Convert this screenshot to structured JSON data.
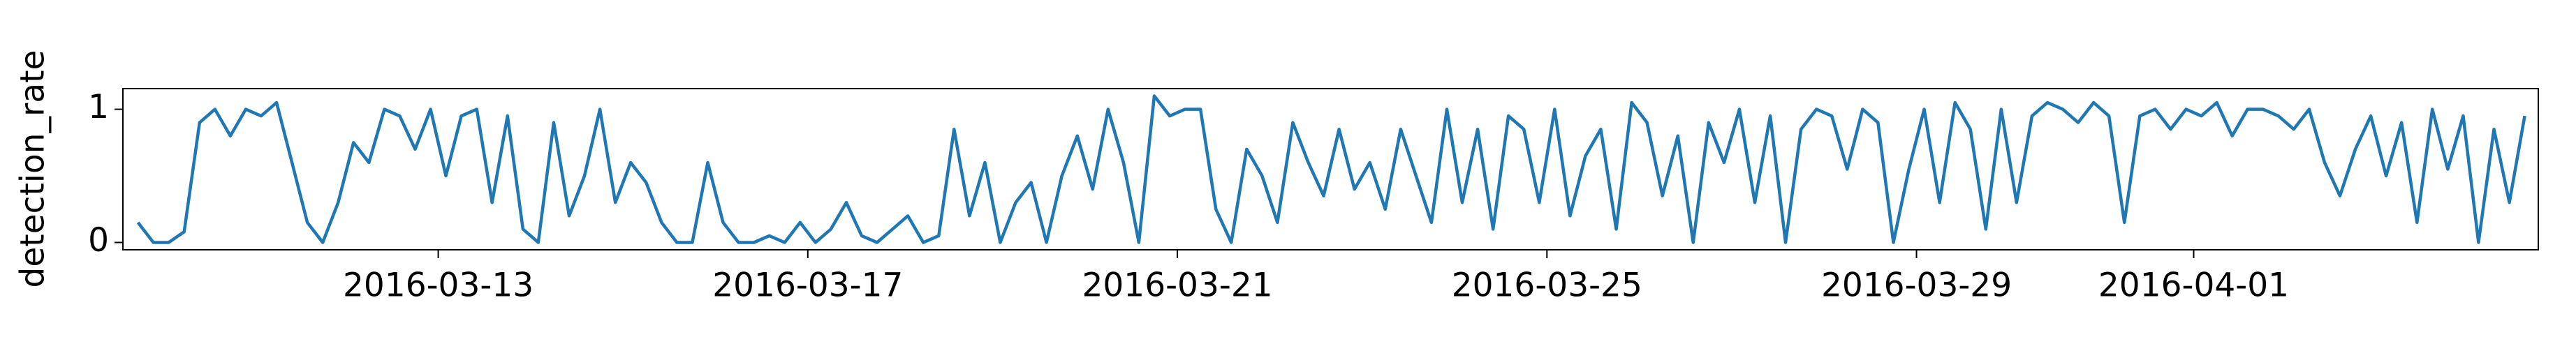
{
  "chart_data": {
    "type": "line",
    "ylabel": "detection_rate",
    "x": [
      9.75,
      9.917,
      10.083,
      10.25,
      10.417,
      10.583,
      10.75,
      10.917,
      11.083,
      11.25,
      11.417,
      11.583,
      11.75,
      11.917,
      12.083,
      12.25,
      12.417,
      12.583,
      12.75,
      12.917,
      13.083,
      13.25,
      13.417,
      13.583,
      13.75,
      13.917,
      14.083,
      14.25,
      14.417,
      14.583,
      14.75,
      14.917,
      15.083,
      15.25,
      15.417,
      15.583,
      15.75,
      15.917,
      16.083,
      16.25,
      16.417,
      16.583,
      16.75,
      16.917,
      17.083,
      17.25,
      17.417,
      17.583,
      17.75,
      17.917,
      18.083,
      18.25,
      18.417,
      18.583,
      18.75,
      18.917,
      19.083,
      19.25,
      19.417,
      19.583,
      19.75,
      19.917,
      20.083,
      20.25,
      20.417,
      20.583,
      20.75,
      20.917,
      21.083,
      21.25,
      21.417,
      21.583,
      21.75,
      21.917,
      22.083,
      22.25,
      22.417,
      22.583,
      22.75,
      22.917,
      23.083,
      23.25,
      23.417,
      23.583,
      23.75,
      23.917,
      24.083,
      24.25,
      24.417,
      24.583,
      24.75,
      24.917,
      25.083,
      25.25,
      25.417,
      25.583,
      25.75,
      25.917,
      26.083,
      26.25,
      26.417,
      26.583,
      26.75,
      26.917,
      27.083,
      27.25,
      27.417,
      27.583,
      27.75,
      27.917,
      28.083,
      28.25,
      28.417,
      28.583,
      28.75,
      28.917,
      29.083,
      29.25,
      29.417,
      29.583,
      29.75,
      29.917,
      30.083,
      30.25,
      30.417,
      30.583,
      30.75,
      30.917,
      31.083,
      31.25,
      31.417,
      31.583,
      31.75,
      31.917,
      32.083,
      32.25,
      32.417,
      32.583,
      32.75,
      32.917,
      33.083,
      33.25,
      33.417,
      33.583,
      33.75,
      33.917,
      34.083,
      34.25,
      34.417,
      34.583,
      34.75,
      34.917,
      35.083,
      35.25,
      35.417,
      35.583
    ],
    "series": [
      {
        "name": "detection_rate",
        "color": "#1f77b4",
        "values": [
          0.15,
          0.0,
          0.0,
          0.08,
          0.9,
          1.0,
          0.8,
          1.0,
          0.95,
          1.05,
          0.6,
          0.15,
          0.0,
          0.3,
          0.75,
          0.6,
          1.0,
          0.95,
          0.7,
          1.0,
          0.5,
          0.95,
          1.0,
          0.3,
          0.95,
          0.1,
          0.0,
          0.9,
          0.2,
          0.5,
          1.0,
          0.3,
          0.6,
          0.45,
          0.15,
          0.0,
          0.0,
          0.6,
          0.15,
          0.0,
          0.0,
          0.05,
          0.0,
          0.15,
          0.0,
          0.1,
          0.3,
          0.05,
          0.0,
          0.1,
          0.2,
          0.0,
          0.05,
          0.85,
          0.2,
          0.6,
          0.0,
          0.3,
          0.45,
          0.0,
          0.5,
          0.8,
          0.4,
          1.0,
          0.6,
          0.0,
          1.1,
          0.95,
          1.0,
          1.0,
          0.25,
          0.0,
          0.7,
          0.5,
          0.15,
          0.9,
          0.6,
          0.35,
          0.85,
          0.4,
          0.6,
          0.25,
          0.85,
          0.5,
          0.15,
          1.0,
          0.3,
          0.85,
          0.1,
          0.95,
          0.85,
          0.3,
          1.0,
          0.2,
          0.65,
          0.85,
          0.1,
          1.05,
          0.9,
          0.35,
          0.8,
          0.0,
          0.9,
          0.6,
          1.0,
          0.3,
          0.95,
          0.0,
          0.85,
          1.0,
          0.95,
          0.55,
          1.0,
          0.9,
          0.0,
          0.55,
          1.0,
          0.3,
          1.05,
          0.85,
          0.1,
          1.0,
          0.3,
          0.95,
          1.05,
          1.0,
          0.9,
          1.05,
          0.95,
          0.15,
          0.95,
          1.0,
          0.85,
          1.0,
          0.95,
          1.05,
          0.8,
          1.0,
          1.0,
          0.95,
          0.85,
          1.0,
          0.6,
          0.35,
          0.7,
          0.95,
          0.5,
          0.9,
          0.15,
          1.0,
          0.55,
          0.95,
          0.0,
          0.85,
          0.3,
          0.95
        ]
      }
    ],
    "xlim": [
      9.587,
      35.73
    ],
    "xticks": [
      {
        "value": 13,
        "label": "2016-03-13"
      },
      {
        "value": 17,
        "label": "2016-03-17"
      },
      {
        "value": 21,
        "label": "2016-03-21"
      },
      {
        "value": 25,
        "label": "2016-03-25"
      },
      {
        "value": 29,
        "label": "2016-03-29"
      },
      {
        "value": 32,
        "label": "2016-04-01"
      }
    ],
    "ylim": [
      -0.055,
      1.155
    ],
    "yticks": [
      0,
      1
    ],
    "grid": false
  }
}
